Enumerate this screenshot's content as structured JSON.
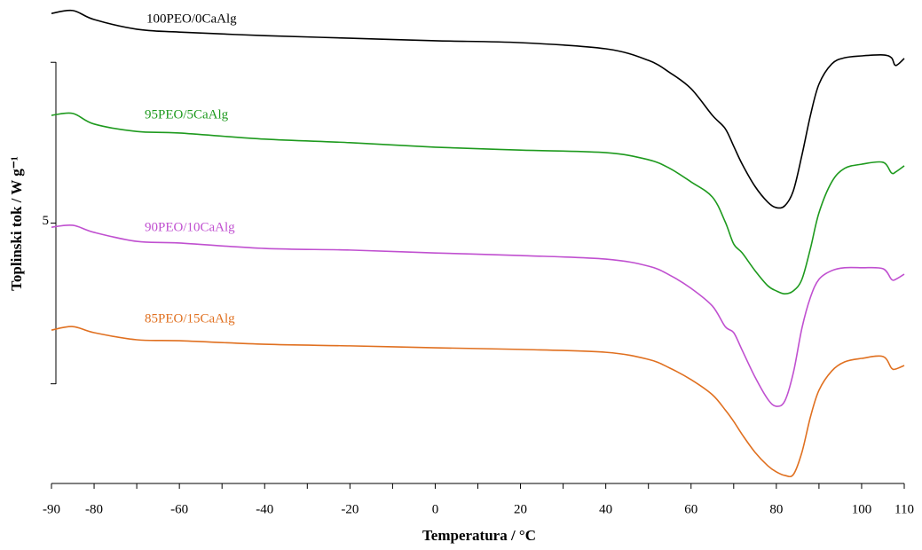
{
  "chart_data": {
    "type": "line",
    "xlabel": "Temperatura / °C",
    "ylabel": "Toplinski tok / W g⁻¹",
    "xlim": [
      -90,
      110
    ],
    "xticks": [
      -90,
      -80,
      -60,
      -40,
      -20,
      0,
      20,
      40,
      60,
      80,
      100,
      110
    ],
    "xminor_ticks": [
      -70,
      -50,
      -30,
      -10,
      10,
      30,
      50,
      70,
      90
    ],
    "ylim": [
      -3.1,
      11.8
    ],
    "yticks": [
      5
    ],
    "yminor_ticks": [
      0,
      10
    ],
    "x": [
      -90,
      -85,
      -80,
      -70,
      -60,
      -40,
      -20,
      0,
      20,
      40,
      50,
      55,
      60,
      65,
      68,
      70,
      72,
      75,
      78,
      80,
      82,
      84,
      86,
      88,
      90,
      93,
      96,
      100,
      105,
      107,
      108,
      110
    ],
    "series": [
      {
        "name": "100PEO/0CaAlg",
        "color": "#000000",
        "values": [
          11.52,
          11.61,
          11.33,
          11.03,
          10.94,
          10.83,
          10.75,
          10.67,
          10.61,
          10.42,
          10.06,
          9.68,
          9.18,
          8.35,
          7.94,
          7.39,
          6.83,
          6.14,
          5.65,
          5.48,
          5.54,
          6.01,
          7.11,
          8.35,
          9.32,
          9.95,
          10.14,
          10.2,
          10.23,
          10.14,
          9.9,
          10.12
        ]
      },
      {
        "name": "95PEO/5CaAlg",
        "color": "#1e9a1e",
        "values": [
          8.35,
          8.41,
          8.08,
          7.85,
          7.8,
          7.61,
          7.5,
          7.36,
          7.27,
          7.19,
          6.97,
          6.7,
          6.28,
          5.81,
          5.04,
          4.35,
          4.07,
          3.52,
          3.05,
          2.89,
          2.8,
          2.89,
          3.25,
          4.21,
          5.32,
          6.28,
          6.7,
          6.83,
          6.89,
          6.56,
          6.59,
          6.78
        ]
      },
      {
        "name": "90PEO/10CaAlg",
        "color": "#c050d0",
        "values": [
          4.87,
          4.93,
          4.71,
          4.43,
          4.38,
          4.21,
          4.16,
          4.07,
          3.99,
          3.88,
          3.66,
          3.38,
          2.97,
          2.42,
          1.78,
          1.59,
          1.04,
          0.21,
          -0.48,
          -0.7,
          -0.53,
          0.35,
          1.73,
          2.69,
          3.25,
          3.52,
          3.61,
          3.61,
          3.58,
          3.25,
          3.25,
          3.41
        ]
      },
      {
        "name": "85PEO/15CaAlg",
        "color": "#e07020",
        "values": [
          1.67,
          1.78,
          1.59,
          1.37,
          1.34,
          1.23,
          1.18,
          1.12,
          1.07,
          0.98,
          0.76,
          0.49,
          0.13,
          -0.34,
          -0.81,
          -1.17,
          -1.58,
          -2.13,
          -2.55,
          -2.74,
          -2.85,
          -2.82,
          -2.13,
          -1.03,
          -0.2,
          0.4,
          0.68,
          0.79,
          0.85,
          0.49,
          0.46,
          0.57
        ]
      }
    ]
  }
}
